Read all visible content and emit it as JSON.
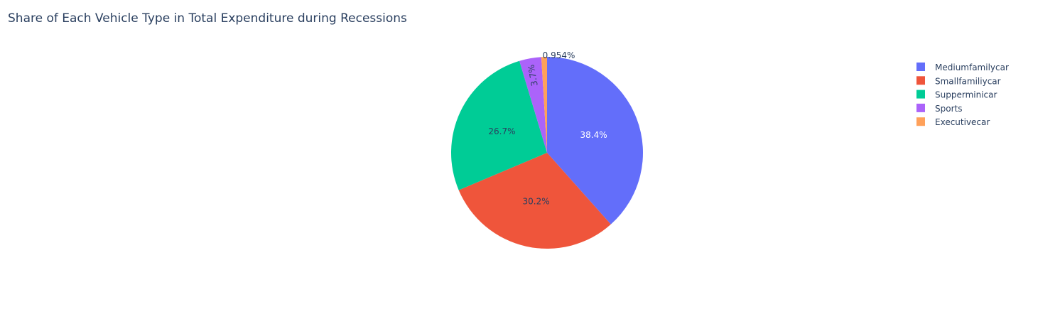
{
  "chart_data": {
    "type": "pie",
    "title": "Share of Each Vehicle Type in Total Expenditure during Recessions",
    "categories": [
      "Mediumfamilycar",
      "Smallfamiliycar",
      "Supperminicar",
      "Sports",
      "Executivecar"
    ],
    "values": [
      38.4,
      30.2,
      26.7,
      3.7,
      0.954
    ],
    "labels": [
      "38.4%",
      "30.2%",
      "26.7%",
      "3.7%",
      "0.954%"
    ],
    "colors": [
      "#636efa",
      "#ef553b",
      "#00cc96",
      "#ab63fa",
      "#ffa15a"
    ],
    "direction": "clockwise",
    "legend_position": "top-right"
  }
}
